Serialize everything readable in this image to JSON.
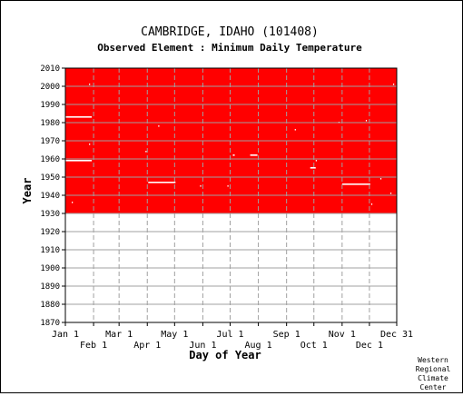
{
  "chart_data": {
    "type": "heatmap",
    "title": "CAMBRIDGE, IDAHO   (101408)",
    "subtitle": "Observed Element : Minimum Daily Temperature",
    "xlabel": "Day of Year",
    "ylabel": "Year",
    "credit": [
      "Western",
      "Regional",
      "Climate",
      "Center"
    ],
    "xlim": [
      1,
      365
    ],
    "ylim": [
      1870,
      2010
    ],
    "x_ticks_top_row": [
      {
        "label": "Jan 1",
        "day": 1
      },
      {
        "label": "Mar 1",
        "day": 60
      },
      {
        "label": "May 1",
        "day": 121
      },
      {
        "label": "Jul 1",
        "day": 182
      },
      {
        "label": "Sep 1",
        "day": 244
      },
      {
        "label": "Nov 1",
        "day": 305
      },
      {
        "label": "Dec 31",
        "day": 365
      }
    ],
    "x_ticks_bottom_row": [
      {
        "label": "Feb 1",
        "day": 32
      },
      {
        "label": "Apr 1",
        "day": 91
      },
      {
        "label": "Jun 1",
        "day": 152
      },
      {
        "label": "Aug 1",
        "day": 213
      },
      {
        "label": "Oct 1",
        "day": 274
      },
      {
        "label": "Dec 1",
        "day": 335
      }
    ],
    "y_ticks": [
      1870,
      1880,
      1890,
      1900,
      1910,
      1920,
      1930,
      1940,
      1950,
      1960,
      1970,
      1980,
      1990,
      2000,
      2010
    ],
    "grid": true,
    "observed_color": "#ff0000",
    "observed_region": {
      "day_start": 1,
      "day_end": 365,
      "year_start": 1930,
      "year_end": 2010
    },
    "gaps": [
      {
        "year": 1983,
        "day_start": 1,
        "day_end": 29
      },
      {
        "year": 1959,
        "day_start": 1,
        "day_end": 29
      },
      {
        "year": 1947,
        "day_start": 92,
        "day_end": 121
      },
      {
        "year": 1962,
        "day_start": 204,
        "day_end": 211
      },
      {
        "year": 1962,
        "day_start": 185,
        "day_end": 186
      },
      {
        "year": 1955,
        "day_start": 270,
        "day_end": 275
      },
      {
        "year": 1946,
        "day_start": 305,
        "day_end": 335
      },
      {
        "year": 2001,
        "day_start": 27,
        "day_end": 27
      },
      {
        "year": 1968,
        "day_start": 27,
        "day_end": 27
      },
      {
        "year": 1978,
        "day_start": 103,
        "day_end": 103
      },
      {
        "year": 1964,
        "day_start": 89,
        "day_end": 89
      },
      {
        "year": 1945,
        "day_start": 149,
        "day_end": 149
      },
      {
        "year": 1945,
        "day_start": 179,
        "day_end": 179
      },
      {
        "year": 1976,
        "day_start": 253,
        "day_end": 253
      },
      {
        "year": 1959,
        "day_start": 276,
        "day_end": 276
      },
      {
        "year": 1980,
        "day_start": 301,
        "day_end": 301
      },
      {
        "year": 1981,
        "day_start": 331,
        "day_end": 331
      },
      {
        "year": 1949,
        "day_start": 347,
        "day_end": 347
      },
      {
        "year": 1941,
        "day_start": 358,
        "day_end": 358
      },
      {
        "year": 2001,
        "day_start": 361,
        "day_end": 361
      },
      {
        "year": 1935,
        "day_start": 337,
        "day_end": 337
      },
      {
        "year": 1936,
        "day_start": 8,
        "day_end": 8
      }
    ]
  }
}
